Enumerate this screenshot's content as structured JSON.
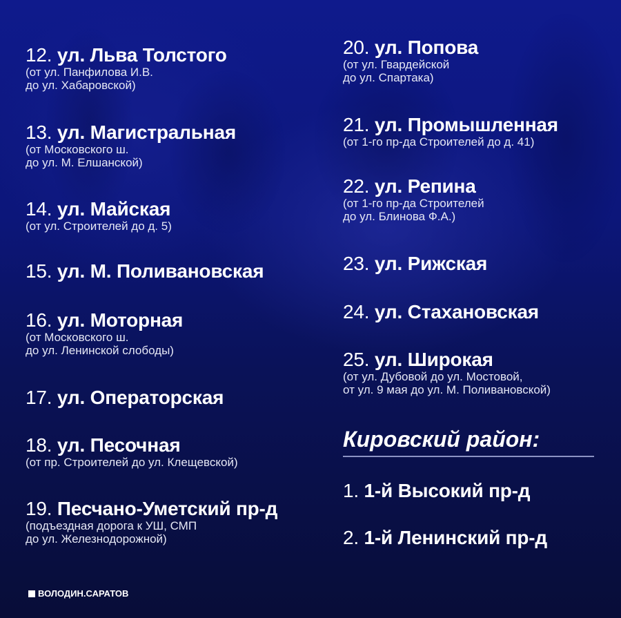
{
  "left_column": [
    {
      "num": "12.",
      "name": "ул. Льва Толстого",
      "sub": [
        "(от ул. Панфилова И.В.",
        "до ул. Хабаровской)"
      ]
    },
    {
      "num": "13.",
      "name": "ул. Магистральная",
      "sub": [
        "(от Московского ш.",
        "до ул. М. Елшанской)"
      ]
    },
    {
      "num": "14.",
      "name": "ул. Майская",
      "sub": [
        "(от ул. Строителей до д. 5)"
      ]
    },
    {
      "num": "15.",
      "name": "ул. М. Поливановская",
      "sub": []
    },
    {
      "num": "16.",
      "name": "ул. Моторная",
      "sub": [
        "(от Московского ш.",
        "до ул. Ленинской слободы)"
      ]
    },
    {
      "num": "17.",
      "name": "ул. Операторская",
      "sub": []
    },
    {
      "num": "18.",
      "name": "ул. Песочная",
      "sub": [
        "(от пр. Строителей до ул. Клещевской)"
      ]
    },
    {
      "num": "19.",
      "name": "Песчано-Уметский пр-д",
      "sub": [
        "(подъездная дорога к УШ, СМП",
        "до ул. Железнодорожной)"
      ]
    }
  ],
  "right_column": [
    {
      "num": "20.",
      "name": "ул. Попова",
      "sub": [
        "(от ул. Гвардейской",
        "до ул. Спартака)"
      ]
    },
    {
      "num": "21.",
      "name": "ул. Промышленная",
      "sub": [
        "(от 1-го пр-да Строителей до д. 41)"
      ]
    },
    {
      "num": "22.",
      "name": "ул. Репина",
      "sub": [
        "(от 1-го пр-да Строителей",
        "до ул. Блинова Ф.А.)"
      ]
    },
    {
      "num": "23.",
      "name": "ул. Рижская",
      "sub": []
    },
    {
      "num": "24.",
      "name": "ул. Стахановская",
      "sub": []
    },
    {
      "num": "25.",
      "name": "ул. Широкая",
      "sub": [
        "(от ул. Дубовой до ул. Мостовой,",
        "от ул. 9 мая до ул. М. Поливановской)"
      ]
    }
  ],
  "district": {
    "heading": "Кировский район:",
    "items": [
      {
        "num": "1.",
        "name": "1-й Высокий пр-д"
      },
      {
        "num": "2.",
        "name": "1-й Ленинский пр-д"
      }
    ]
  },
  "brand": "ВОЛОДИН.САРАТОВ",
  "colors": {
    "background": "#0c167a",
    "text": "#ffffff",
    "rule": "#8c93c4"
  }
}
